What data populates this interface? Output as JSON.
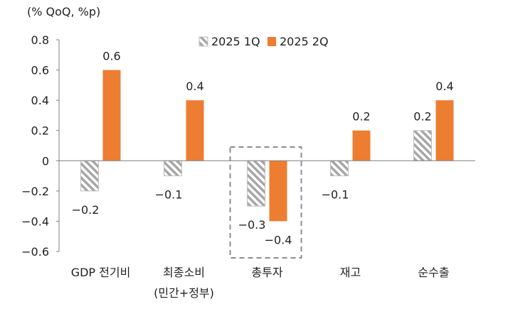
{
  "chart_data": {
    "type": "bar",
    "unit_label": "(% QoQ, %p)",
    "categories": [
      "GDP 전기비",
      "최종소비",
      "총투자",
      "재고",
      "순수출"
    ],
    "category_sublabels": [
      "",
      "(민간+정부)",
      "",
      "",
      ""
    ],
    "y_ticks": [
      "0.8",
      "0.6",
      "0.4",
      "0.2",
      "0",
      "−0.2",
      "−0.4",
      "−0.6"
    ],
    "y_tick_values": [
      0.8,
      0.6,
      0.4,
      0.2,
      0,
      -0.2,
      -0.4,
      -0.6
    ],
    "ylim": [
      -0.6,
      0.8
    ],
    "legend_position": "top",
    "highlighted_category": "총투자",
    "series": [
      {
        "name": "2025 1Q",
        "values": [
          -0.2,
          -0.1,
          -0.3,
          -0.1,
          0.2
        ],
        "value_labels": [
          "−0.2",
          "−0.1",
          "−0.3",
          "−0.1",
          "0.2"
        ],
        "style": "hatched",
        "color": "#a6a6a6"
      },
      {
        "name": "2025 2Q",
        "values": [
          0.6,
          0.4,
          -0.4,
          0.2,
          0.4
        ],
        "value_labels": [
          "0.6",
          "0.4",
          "−0.4",
          "0.2",
          "0.4"
        ],
        "style": "solid",
        "color": "#ed7d31"
      }
    ]
  }
}
